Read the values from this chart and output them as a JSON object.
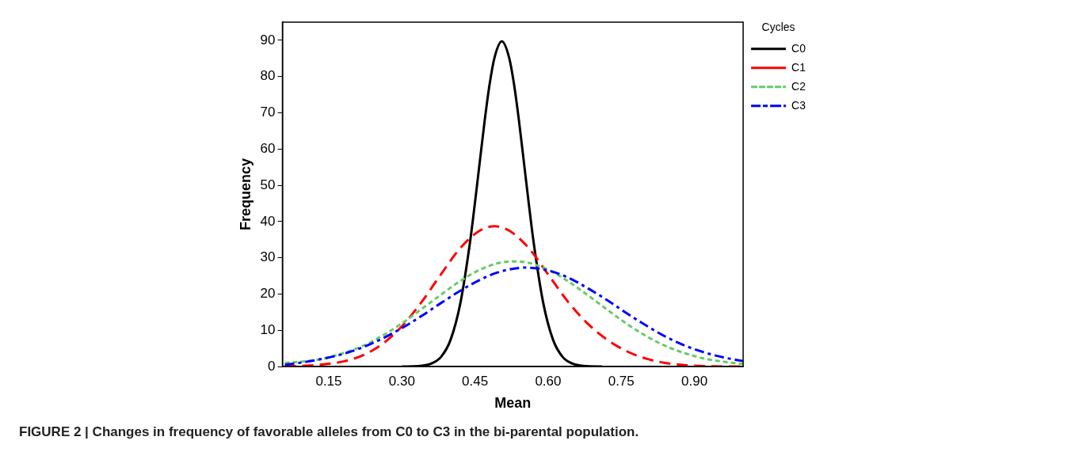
{
  "chart_data": {
    "type": "line",
    "xlabel": "Mean",
    "ylabel": "Frequency",
    "legend_title": "Cycles",
    "legend": "top right",
    "grid": false,
    "marker": "none",
    "xlim": [
      0.055,
      1.0
    ],
    "ylim": [
      0,
      95
    ],
    "xticks": [
      {
        "value": 0.15,
        "label": "0.15"
      },
      {
        "value": 0.3,
        "label": "0.30"
      },
      {
        "value": 0.45,
        "label": "0.45"
      },
      {
        "value": 0.6,
        "label": "0.60"
      },
      {
        "value": 0.75,
        "label": "0.75"
      },
      {
        "value": 0.9,
        "label": "0.90"
      }
    ],
    "yticks": [
      0,
      10,
      20,
      30,
      40,
      50,
      60,
      70,
      80,
      90
    ],
    "annotations": [
      "FIGURE 2 | Changes in frequency of favorable alleles from C0 to C3 in the bi-parental population."
    ],
    "series": [
      {
        "name": "C0",
        "color": "#000000",
        "line_style": "solid",
        "x": [
          0.3,
          0.33,
          0.36,
          0.38,
          0.4,
          0.42,
          0.44,
          0.45,
          0.46,
          0.47,
          0.48,
          0.49,
          0.505,
          0.52,
          0.53,
          0.54,
          0.55,
          0.56,
          0.57,
          0.59,
          0.61,
          0.63,
          0.65,
          0.68,
          0.71
        ],
        "values": [
          0,
          0.1,
          0.8,
          2.6,
          7.4,
          17.5,
          34.5,
          45.3,
          56.7,
          68,
          77.9,
          85.2,
          89.7,
          85.2,
          77.9,
          68,
          56.7,
          45.3,
          34.5,
          17.5,
          7.4,
          2.6,
          0.8,
          0.1,
          0
        ]
      },
      {
        "name": "C1",
        "color": "#ff0000",
        "line_style": "dashed",
        "x": [
          0.06,
          0.1,
          0.14,
          0.18,
          0.22,
          0.26,
          0.3,
          0.34,
          0.38,
          0.42,
          0.46,
          0.49,
          0.52,
          0.56,
          0.6,
          0.64,
          0.68,
          0.72,
          0.76,
          0.8,
          0.84,
          0.88,
          0.92,
          0.96,
          1.0
        ],
        "values": [
          0.1,
          0.2,
          0.6,
          1.4,
          3.1,
          6.2,
          11.1,
          17.7,
          25.4,
          32.7,
          37.5,
          38.7,
          37.5,
          32.7,
          25.4,
          18,
          12,
          7.5,
          4.3,
          2.2,
          1,
          0.4,
          0.1,
          0,
          0
        ]
      },
      {
        "name": "C2",
        "color": "#66cc66",
        "line_style": "dotted",
        "x": [
          0.06,
          0.1,
          0.14,
          0.18,
          0.22,
          0.26,
          0.3,
          0.34,
          0.38,
          0.42,
          0.46,
          0.5,
          0.53,
          0.56,
          0.6,
          0.64,
          0.68,
          0.72,
          0.76,
          0.8,
          0.84,
          0.88,
          0.92,
          0.96,
          1.0
        ],
        "values": [
          1.0,
          1.4,
          2.2,
          3.7,
          5.7,
          8.5,
          11.9,
          15.8,
          19.8,
          23.6,
          26.7,
          28.6,
          29,
          28.6,
          26.7,
          23.6,
          19.8,
          15.8,
          11.9,
          8.5,
          5.7,
          3.7,
          2.2,
          1.3,
          0.7
        ]
      },
      {
        "name": "C3",
        "color": "#0000ff",
        "line_style": "dashdot",
        "x": [
          0.06,
          0.1,
          0.14,
          0.18,
          0.22,
          0.26,
          0.3,
          0.34,
          0.38,
          0.42,
          0.46,
          0.5,
          0.555,
          0.6,
          0.64,
          0.68,
          0.72,
          0.76,
          0.8,
          0.84,
          0.88,
          0.92,
          0.96,
          1.0
        ],
        "values": [
          0.5,
          1.2,
          2.2,
          3.5,
          5.3,
          7.7,
          10.6,
          13.9,
          17.5,
          20.9,
          23.9,
          26.1,
          27.3,
          26.5,
          24.6,
          21.7,
          18.4,
          14.8,
          11.4,
          8.3,
          5.8,
          3.9,
          2.5,
          1.5
        ]
      }
    ]
  }
}
